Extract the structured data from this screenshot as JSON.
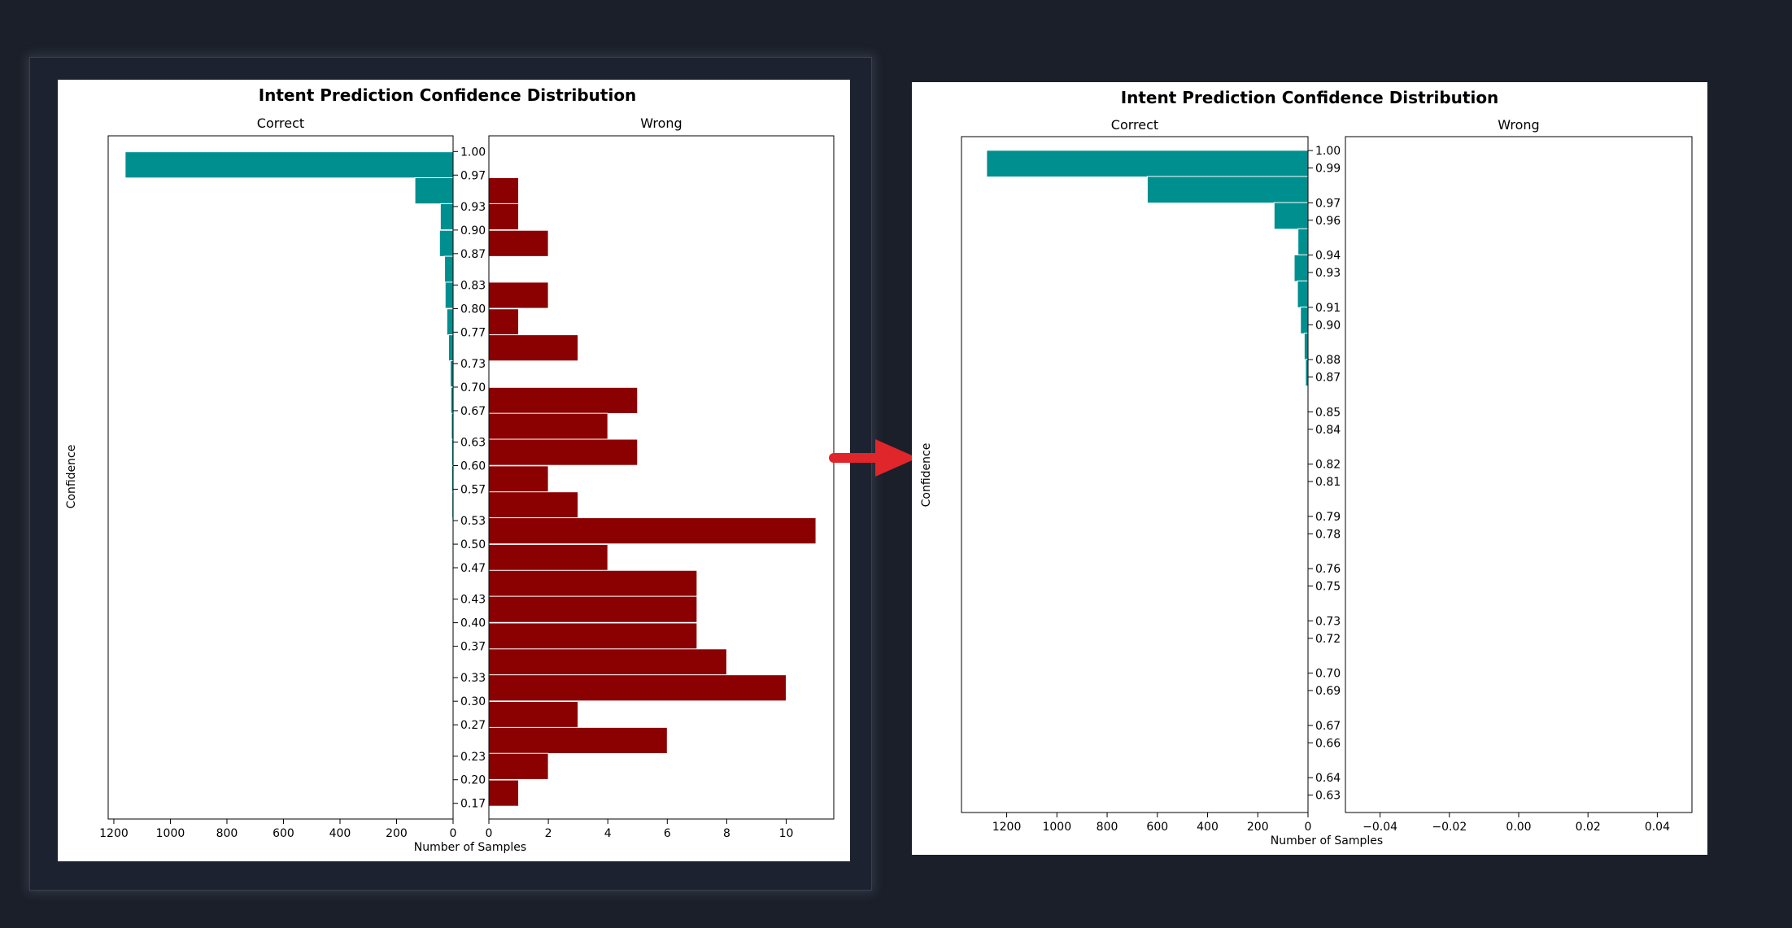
{
  "colors": {
    "background": "#1b1f2a",
    "correct_bar": "#008f8f",
    "wrong_bar": "#8b0000",
    "arrow": "#e0252b"
  },
  "before": {
    "title": "Intent Prediction Confidence Distribution",
    "ylabel": "Confidence",
    "xlabel": "Number of Samples"
  },
  "after": {
    "title": "Intent Prediction Confidence Distribution",
    "ylabel": "Confidence",
    "xlabel": "Number of Samples"
  },
  "chart_data": [
    {
      "type": "bar",
      "orientation": "horizontal",
      "title": "Intent Prediction Confidence Distribution",
      "ylabel": "Confidence",
      "xlabel": "Number of Samples",
      "ylim": [
        0.15,
        1.02
      ],
      "bin_width": 0.0333,
      "yticks": [
        "1.00",
        "0.97",
        "0.93",
        "0.90",
        "0.87",
        "0.83",
        "0.80",
        "0.77",
        "0.73",
        "0.70",
        "0.67",
        "0.63",
        "0.60",
        "0.57",
        "0.53",
        "0.50",
        "0.47",
        "0.43",
        "0.40",
        "0.37",
        "0.33",
        "0.30",
        "0.27",
        "0.23",
        "0.20",
        "0.17"
      ],
      "panels": [
        {
          "subtitle": "Correct",
          "xlim": [
            1220,
            0
          ],
          "xticks": [
            "1200",
            "1000",
            "800",
            "600",
            "400",
            "200",
            "0"
          ],
          "bins": [
            0.983,
            0.95,
            0.917,
            0.883,
            0.85,
            0.817,
            0.783,
            0.75,
            0.717,
            0.683,
            0.65,
            0.617,
            0.583,
            0.55,
            0.517,
            0.483,
            0.45,
            0.417
          ],
          "values": [
            1160,
            135,
            45,
            48,
            30,
            28,
            22,
            16,
            10,
            8,
            6,
            5,
            5,
            4,
            3,
            3,
            2,
            2
          ]
        },
        {
          "subtitle": "Wrong",
          "xlim": [
            0,
            11.6
          ],
          "xticks": [
            "0",
            "2",
            "4",
            "6",
            "8",
            "10"
          ],
          "bins": [
            0.95,
            0.917,
            0.883,
            0.85,
            0.817,
            0.783,
            0.75,
            0.717,
            0.683,
            0.65,
            0.617,
            0.583,
            0.55,
            0.517,
            0.483,
            0.45,
            0.417,
            0.383,
            0.35,
            0.317,
            0.283,
            0.25,
            0.217,
            0.183,
            0.15
          ],
          "values": [
            1,
            1,
            2,
            0,
            2,
            1,
            3,
            0,
            5,
            4,
            5,
            2,
            3,
            11,
            4,
            7,
            7,
            7,
            8,
            10,
            3,
            6,
            2,
            1,
            0
          ]
        }
      ]
    },
    {
      "type": "bar",
      "orientation": "horizontal",
      "title": "Intent Prediction Confidence Distribution",
      "ylabel": "Confidence",
      "xlabel": "Number of Samples",
      "ylim": [
        0.62,
        1.008
      ],
      "bin_width": 0.0153,
      "yticks": [
        "1.00",
        "0.99",
        "0.97",
        "0.96",
        "0.94",
        "0.93",
        "0.91",
        "0.90",
        "0.88",
        "0.87",
        "0.85",
        "0.84",
        "0.82",
        "0.81",
        "0.79",
        "0.78",
        "0.76",
        "0.75",
        "0.73",
        "0.72",
        "0.70",
        "0.69",
        "0.67",
        "0.66",
        "0.64",
        "0.63"
      ],
      "panels": [
        {
          "subtitle": "Correct",
          "xlim": [
            1380,
            0
          ],
          "xticks": [
            "1200",
            "1000",
            "800",
            "600",
            "400",
            "200",
            "0"
          ],
          "bins": [
            0.9925,
            0.9775,
            0.9625,
            0.9475,
            0.9325,
            0.9175,
            0.9025,
            0.8875,
            0.8725
          ],
          "values": [
            1280,
            640,
            135,
            40,
            55,
            42,
            30,
            15,
            10
          ]
        },
        {
          "subtitle": "Wrong",
          "xlim": [
            -0.05,
            0.05
          ],
          "xticks": [
            "−0.04",
            "−0.02",
            "0.00",
            "0.02",
            "0.04"
          ],
          "bins": [],
          "values": []
        }
      ]
    }
  ]
}
